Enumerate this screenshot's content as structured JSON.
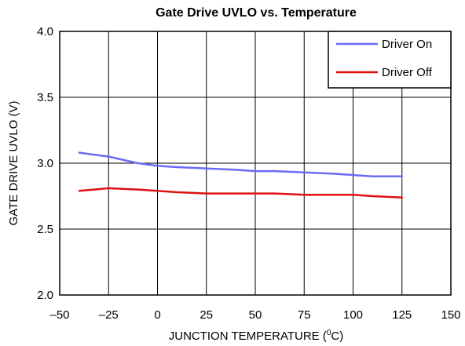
{
  "chart_data": {
    "type": "line",
    "title": "Gate Drive UVLO vs. Temperature",
    "xlabel_main": "JUNCTION TEMPERATURE (",
    "xlabel_sup": "0",
    "xlabel_tail": "C)",
    "ylabel": "GATE DRIVE UVLO (V)",
    "xlim": [
      -50,
      150
    ],
    "ylim": [
      2.0,
      4.0
    ],
    "x_ticks": [
      -50,
      -25,
      0,
      25,
      50,
      75,
      100,
      125,
      150
    ],
    "x_tick_labels": [
      "–50",
      "–25",
      "0",
      "25",
      "50",
      "75",
      "100",
      "125",
      "150"
    ],
    "y_ticks": [
      2.0,
      2.5,
      3.0,
      3.5,
      4.0
    ],
    "y_tick_labels": [
      "2.0",
      "2.5",
      "3.0",
      "3.5",
      "4.0"
    ],
    "grid": true,
    "legend_position": "top-right",
    "series": [
      {
        "name": "Driver On",
        "color": "#6b6bf5",
        "x": [
          -40,
          -25,
          -10,
          0,
          10,
          25,
          40,
          50,
          60,
          75,
          90,
          100,
          110,
          125
        ],
        "y": [
          3.08,
          3.05,
          3.0,
          2.98,
          2.97,
          2.96,
          2.95,
          2.94,
          2.94,
          2.93,
          2.92,
          2.91,
          2.9,
          2.9
        ]
      },
      {
        "name": "Driver Off",
        "color": "#e01010",
        "x": [
          -40,
          -25,
          -10,
          0,
          10,
          25,
          40,
          50,
          60,
          75,
          90,
          100,
          110,
          125
        ],
        "y": [
          2.79,
          2.81,
          2.8,
          2.79,
          2.78,
          2.77,
          2.77,
          2.77,
          2.77,
          2.76,
          2.76,
          2.76,
          2.75,
          2.74
        ]
      }
    ]
  }
}
